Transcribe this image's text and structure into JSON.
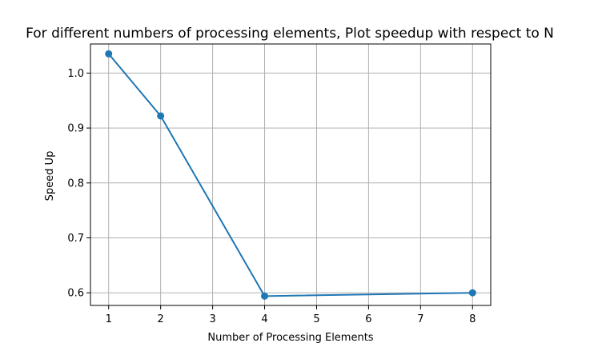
{
  "chart_data": {
    "type": "line",
    "title": "For different numbers of processing elements, Plot speedup with respect to N",
    "xlabel": "Number of Processing Elements",
    "ylabel": "Speed Up",
    "x": [
      1,
      2,
      4,
      8
    ],
    "series": [
      {
        "name": "speedup",
        "values": [
          1.035,
          0.922,
          0.594,
          0.6
        ],
        "color": "#1f77b4",
        "marker": "circle"
      }
    ],
    "xlim": [
      0.65,
      8.35
    ],
    "ylim": [
      0.577,
      1.053
    ],
    "xticks": [
      1,
      2,
      3,
      4,
      5,
      6,
      7,
      8
    ],
    "xtick_labels": [
      "1",
      "2",
      "3",
      "4",
      "5",
      "6",
      "7",
      "8"
    ],
    "yticks": [
      0.6,
      0.7,
      0.8,
      0.9,
      1.0
    ],
    "ytick_labels": [
      "0.6",
      "0.7",
      "0.8",
      "0.9",
      "1.0"
    ],
    "grid": true
  }
}
